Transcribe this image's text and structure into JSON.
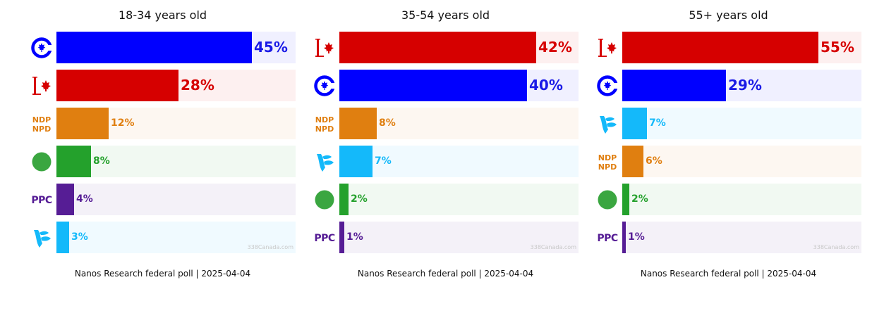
{
  "parties": {
    "CPC": {
      "color": "#0000ff",
      "bg": "#f0f0ff",
      "text": "#1a1ae6",
      "icon": "cpc-logo-icon"
    },
    "LPC": {
      "color": "#d60000",
      "bg": "#fdf0f0",
      "text": "#d60000",
      "icon": "lpc-logo-icon"
    },
    "NDP": {
      "color": "#e07f10",
      "bg": "#fdf7f1",
      "text": "#e07f10",
      "icon": "ndp-logo-icon",
      "logo_text": [
        "NDP",
        "NPD"
      ]
    },
    "GPC": {
      "color": "#24a12c",
      "bg": "#f1f9f2",
      "text": "#24a12c",
      "icon": "green-logo-icon"
    },
    "PPC": {
      "color": "#561d95",
      "bg": "#f4f1f8",
      "text": "#561d95",
      "icon": "ppc-logo-icon",
      "logo_text": "PPC"
    },
    "BQ": {
      "color": "#14b9fa",
      "bg": "#f0faff",
      "text": "#14b9fa",
      "icon": "bq-logo-icon"
    }
  },
  "chart_data": [
    {
      "type": "bar",
      "title": "18-34 years old",
      "categories": [
        "CPC",
        "LPC",
        "NDP",
        "GPC",
        "PPC",
        "BQ"
      ],
      "values": [
        45,
        28,
        12,
        8,
        4,
        3
      ],
      "labels": [
        "45%",
        "28%",
        "12%",
        "8%",
        "4%",
        "3%"
      ],
      "xlim": [
        0,
        55
      ],
      "watermark": "338Canada.com",
      "source": "Nanos Research federal poll | 2025-04-04"
    },
    {
      "type": "bar",
      "title": "35-54 years old",
      "categories": [
        "LPC",
        "CPC",
        "NDP",
        "BQ",
        "GPC",
        "PPC"
      ],
      "values": [
        42,
        40,
        8,
        7,
        2,
        1
      ],
      "labels": [
        "42%",
        "40%",
        "8%",
        "7%",
        "2%",
        "1%"
      ],
      "xlim": [
        0,
        51
      ],
      "watermark": "338Canada.com",
      "source": "Nanos Research federal poll | 2025-04-04"
    },
    {
      "type": "bar",
      "title": "55+ years old",
      "categories": [
        "LPC",
        "CPC",
        "BQ",
        "NDP",
        "GPC",
        "PPC"
      ],
      "values": [
        55,
        29,
        7,
        6,
        2,
        1
      ],
      "labels": [
        "55%",
        "29%",
        "7%",
        "6%",
        "2%",
        "1%"
      ],
      "xlim": [
        0,
        67
      ],
      "watermark": "338Canada.com",
      "source": "Nanos Research federal poll | 2025-04-04"
    }
  ]
}
